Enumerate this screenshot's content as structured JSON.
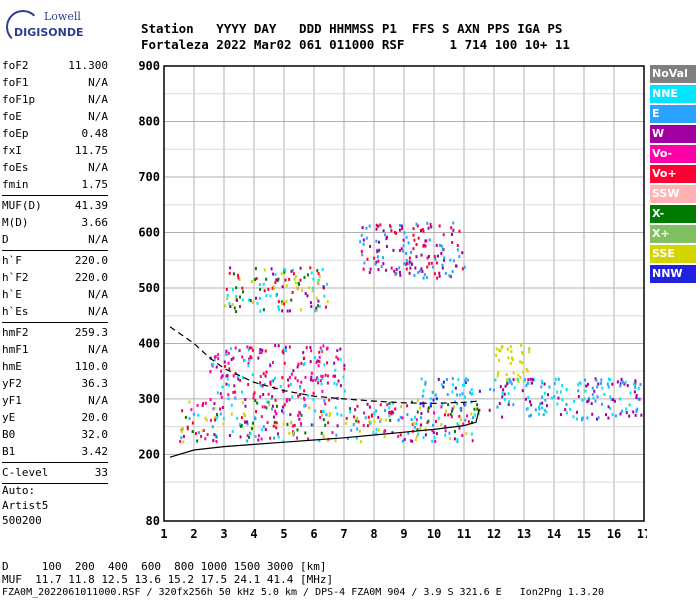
{
  "logo": {
    "line1": "Lowell",
    "line2": "DIGISONDE"
  },
  "header": {
    "labels_line": "Station   YYYY DAY   DDD HHMMSS P1  FFS S AXN PPS IGA PS",
    "values_line": "Fortaleza 2022 Mar02 061 011000 RSF      1 714 100 10+ 11"
  },
  "params": [
    {
      "label": "foF2",
      "value": "11.300"
    },
    {
      "label": "foF1",
      "value": "N/A"
    },
    {
      "label": "foF1p",
      "value": "N/A"
    },
    {
      "label": "foE",
      "value": "N/A"
    },
    {
      "label": "foEp",
      "value": "0.48"
    },
    {
      "label": "fxI",
      "value": "11.75"
    },
    {
      "label": "foEs",
      "value": "N/A"
    },
    {
      "label": "fmin",
      "value": "1.75"
    },
    {
      "sep": true
    },
    {
      "label": "MUF(D)",
      "value": "41.39"
    },
    {
      "label": "M(D)",
      "value": "3.66"
    },
    {
      "label": "D",
      "value": "N/A"
    },
    {
      "sep": true
    },
    {
      "label": "h`F",
      "value": "220.0"
    },
    {
      "label": "h`F2",
      "value": "220.0"
    },
    {
      "label": "h`E",
      "value": "N/A"
    },
    {
      "label": "h`Es",
      "value": "N/A"
    },
    {
      "sep": true
    },
    {
      "label": "hmF2",
      "value": "259.3"
    },
    {
      "label": "hmF1",
      "value": "N/A"
    },
    {
      "label": "hmE",
      "value": "110.0"
    },
    {
      "label": "yF2",
      "value": "36.3"
    },
    {
      "label": "yF1",
      "value": "N/A"
    },
    {
      "label": "yE",
      "value": "20.0"
    },
    {
      "label": "B0",
      "value": "32.0"
    },
    {
      "label": "B1",
      "value": "3.42"
    },
    {
      "sep": true
    },
    {
      "label": "C-level",
      "value": "33"
    },
    {
      "sep": true
    }
  ],
  "auto": {
    "line1": "Auto:",
    "line2": "Artist5",
    "line3": "500200"
  },
  "legend": [
    {
      "label": "NoVal",
      "color": "#808080",
      "text_color": "#ffffff"
    },
    {
      "label": "NNE",
      "color": "#00e5ff",
      "text_color": "#ffffff"
    },
    {
      "label": "E",
      "color": "#29a3ff",
      "text_color": "#ffffff"
    },
    {
      "label": "W",
      "color": "#a000a0",
      "text_color": "#ffffff"
    },
    {
      "label": "Vo-",
      "color": "#ff00a8",
      "text_color": "#ffffff"
    },
    {
      "label": "Vo+",
      "color": "#ff0033",
      "text_color": "#ffffff"
    },
    {
      "label": "SSW",
      "color": "#ffb3b3",
      "text_color": "#ffffff"
    },
    {
      "label": "X-",
      "color": "#007a00",
      "text_color": "#ffffff"
    },
    {
      "label": "X+",
      "color": "#80c060",
      "text_color": "#ffffff"
    },
    {
      "label": "SSE",
      "color": "#d4d400",
      "text_color": "#ffffff"
    },
    {
      "label": "NNW",
      "color": "#2020e0",
      "text_color": "#ffffff"
    }
  ],
  "bottom": {
    "line1": "D     100  200  400  600  800 1000 1500 3000 [km]",
    "line2": "MUF  11.7 11.8 12.5 13.6 15.2 17.5 24.1 41.4 [MHz]",
    "line3": "FZA0M_2022061011000.RSF / 320fx256h 50 kHz 5.0 km / DPS-4 FZA0M 904 / 3.9 S 321.6 E   Ion2Png 1.3.20"
  },
  "chart_data": {
    "type": "scatter",
    "title": "",
    "xlabel": "",
    "ylabel": "",
    "xlim": [
      1,
      17
    ],
    "ylim": [
      80,
      900
    ],
    "xticks": [
      1,
      2,
      3,
      4,
      5,
      6,
      7,
      8,
      9,
      10,
      11,
      12,
      13,
      14,
      15,
      16,
      17
    ],
    "yticks": [
      80,
      200,
      300,
      400,
      500,
      600,
      700,
      800,
      900
    ],
    "grid": true,
    "echo_regions": [
      {
        "x": [
          1.5,
          11.5
        ],
        "y": [
          225,
          300
        ],
        "colors": [
          "#ff00a8",
          "#a000a0",
          "#ff0033",
          "#d4d400",
          "#00e5ff",
          "#007a00",
          "#29a3ff"
        ]
      },
      {
        "x": [
          2.5,
          7.0
        ],
        "y": [
          300,
          400
        ],
        "colors": [
          "#ff00a8",
          "#a000a0",
          "#ff0033",
          "#00e5ff"
        ]
      },
      {
        "x": [
          3.0,
          6.5
        ],
        "y": [
          460,
          540
        ],
        "colors": [
          "#00e5ff",
          "#ff0033",
          "#d4d400",
          "#a000a0",
          "#007a00"
        ]
      },
      {
        "x": [
          9.5,
          11.5
        ],
        "y": [
          290,
          340
        ],
        "colors": [
          "#2020e0",
          "#29a3ff",
          "#00e5ff"
        ]
      },
      {
        "x": [
          12.0,
          13.2
        ],
        "y": [
          330,
          400
        ],
        "colors": [
          "#d4d400"
        ]
      },
      {
        "x": [
          11.8,
          16.9
        ],
        "y": [
          265,
          340
        ],
        "colors": [
          "#00e5ff",
          "#a000a0",
          "#29a3ff"
        ]
      },
      {
        "x": [
          7.5,
          11.0
        ],
        "y": [
          520,
          620
        ],
        "colors": [
          "#29a3ff",
          "#ff0033",
          "#a000a0"
        ]
      }
    ],
    "series": [
      {
        "style": "solid",
        "x": [
          1.2,
          2,
          3,
          4,
          5,
          6,
          7,
          8,
          9,
          10,
          11,
          11.4,
          11.5
        ],
        "y": [
          195,
          208,
          214,
          218,
          222,
          226,
          230,
          235,
          240,
          245,
          252,
          258,
          280
        ]
      },
      {
        "style": "dashed",
        "x": [
          1.2,
          2,
          2.5,
          3,
          4,
          5,
          6,
          7,
          8,
          9,
          10,
          11,
          11.5
        ],
        "y": [
          430,
          400,
          375,
          355,
          330,
          315,
          305,
          300,
          296,
          293,
          292,
          294,
          296
        ]
      }
    ]
  }
}
